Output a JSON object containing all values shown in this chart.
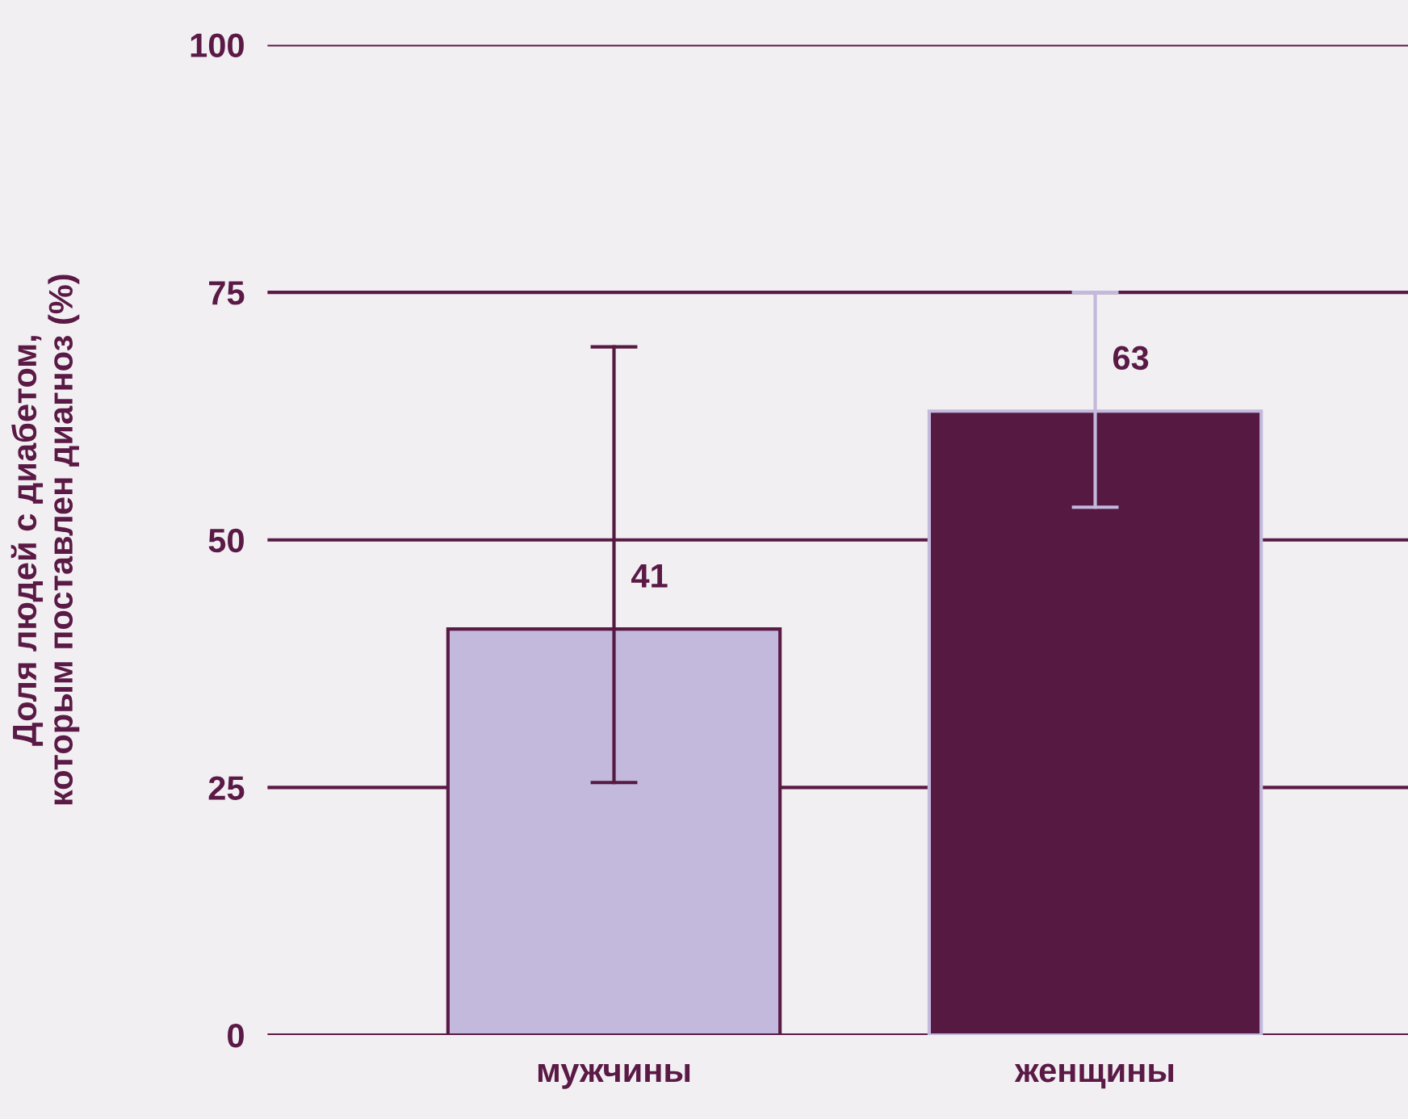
{
  "chart_data": {
    "type": "bar",
    "ylabel": "Доля людей с диабетом,\nкоторым поставлен диагноз (%)",
    "categories": [
      "мужчины",
      "женщины"
    ],
    "values": [
      41,
      63
    ],
    "colors": [
      "#c2b9dc",
      "#561a42"
    ],
    "errors": [
      [
        25.5,
        69.5
      ],
      [
        53.3,
        75
      ]
    ],
    "data_labels": true,
    "ylim": [
      0,
      100
    ],
    "yticks": [
      0,
      25,
      50,
      75,
      100
    ],
    "grid": "y"
  }
}
